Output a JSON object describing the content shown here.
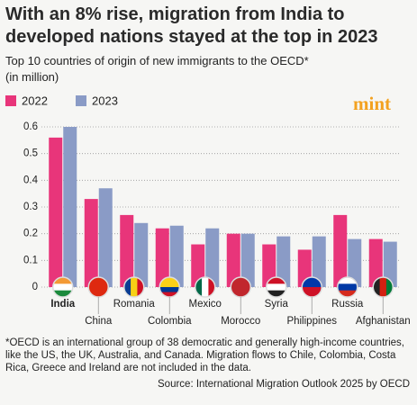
{
  "chart_data": {
    "type": "bar",
    "title": "With an 8% rise, migration from India to developed nations stayed at the top in 2023",
    "subtitle": "Top 10 countries of origin of new immigrants to the OECD*",
    "unit": "(in million)",
    "logo": "mint",
    "categories": [
      "India",
      "China",
      "Romania",
      "Colombia",
      "Mexico",
      "Morocco",
      "Syria",
      "Philippines",
      "Russia",
      "Afghanistan"
    ],
    "series": [
      {
        "name": "2022",
        "color": "#e8357a",
        "values": [
          0.56,
          0.33,
          0.27,
          0.22,
          0.16,
          0.2,
          0.16,
          0.14,
          0.27,
          0.18
        ]
      },
      {
        "name": "2023",
        "color": "#8a9bc6",
        "values": [
          0.6,
          0.37,
          0.24,
          0.23,
          0.22,
          0.2,
          0.19,
          0.19,
          0.18,
          0.17
        ]
      }
    ],
    "ylim": [
      0,
      0.6
    ],
    "yticks": [
      0,
      0.1,
      0.2,
      0.3,
      0.4,
      0.5,
      0.6
    ],
    "grid": true,
    "footnote": "*OECD is an international group of 38 democratic and generally high-income countries, like the US, the UK, Australia, and Canada. Migration flows to Chile, Colombia, Costa Rica, Greece and Ireland are not included in the data.",
    "source": "Source: International Migration Outlook 2025 by OECD"
  }
}
